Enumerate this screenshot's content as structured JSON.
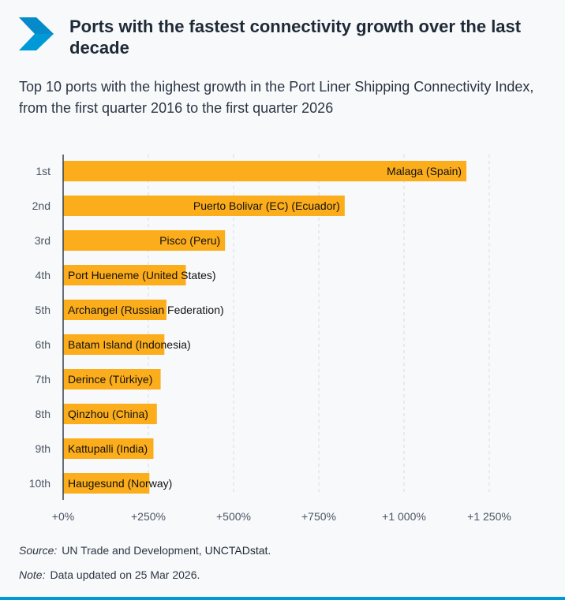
{
  "header": {
    "title": "Ports with the fastest connectivity growth over the last decade",
    "subtitle": "Top 10 ports with the highest growth in the Port Liner Shipping Connectivity Index, from the first quarter 2016 to the first quarter 2026"
  },
  "colors": {
    "bar": "#fcad1b",
    "accent": "#0099d8",
    "grid": "#d6dbe2",
    "axis": "#33404f"
  },
  "icons": {
    "logo": "chevron-logo-icon"
  },
  "chart_data": {
    "type": "bar",
    "orientation": "horizontal",
    "categories": [
      "1st",
      "2nd",
      "3rd",
      "4th",
      "5th",
      "6th",
      "7th",
      "8th",
      "9th",
      "10th"
    ],
    "labels": [
      "Malaga (Spain)",
      "Puerto Bolivar (EC) (Ecuador)",
      "Pisco (Peru)",
      "Port Hueneme (United States)",
      "Archangel (Russian Federation)",
      "Batam Island (Indonesia)",
      "Derince (Türkiye)",
      "Qinzhou (China)",
      "Kattupalli (India)",
      "Haugesund (Norway)"
    ],
    "values": [
      1183,
      826,
      475,
      360,
      303,
      297,
      286,
      275,
      265,
      253
    ],
    "xlim": [
      0,
      1250
    ],
    "xticks": [
      0,
      250,
      500,
      750,
      1000,
      1250
    ],
    "xtick_labels": [
      "+0%",
      "+250%",
      "+500%",
      "+750%",
      "+1 000%",
      "+1 250%"
    ],
    "grid": true
  },
  "footer": {
    "source_label": "Source:",
    "source_text": "UN Trade and Development,",
    "source_strong": "UNCTADstat.",
    "note_label": "Note:",
    "note_text": "Data updated on 25 Mar 2026."
  }
}
